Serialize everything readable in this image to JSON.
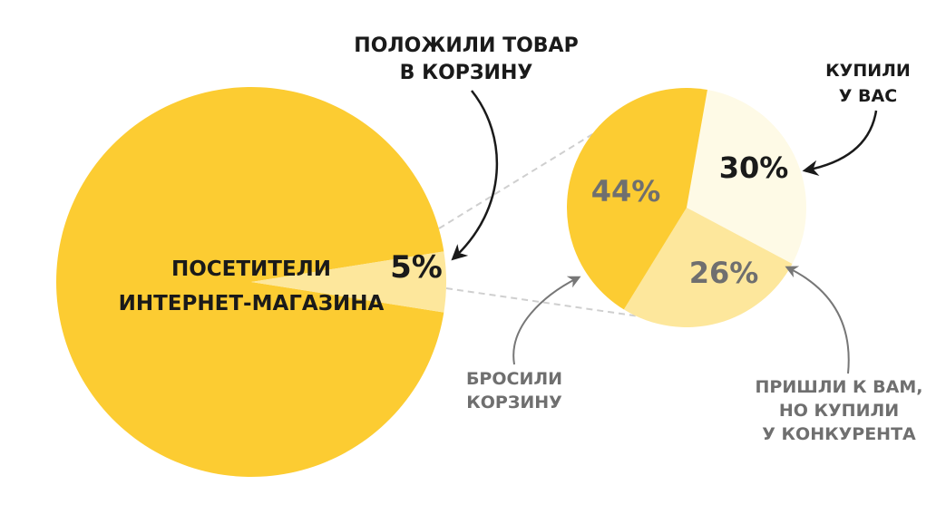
{
  "chart_data": [
    {
      "type": "pie",
      "name": "visitors",
      "categories": [
        "ПОСЕТИТЕЛИ ИНТЕРНЕТ-МАГАЗИНА",
        "ПОЛОЖИЛИ ТОВАР В КОРЗИНУ"
      ],
      "values": [
        95,
        5
      ],
      "value_labels": [
        "",
        "5%"
      ],
      "colors": [
        "#fccc32",
        "#fde79c"
      ],
      "center_label": [
        "ПОСЕТИТЕЛИ",
        "ИНТЕРНЕТ-МАГАЗИНА"
      ],
      "title": ""
    },
    {
      "type": "pie",
      "name": "cart",
      "categories": [
        "КУПИЛИ У ВАС",
        "ПРИШЛИ К ВАМ, НО КУПИЛИ У КОНКУРЕНТА",
        "БРОСИЛИ КОРЗИНУ"
      ],
      "values": [
        30,
        26,
        44
      ],
      "value_labels": [
        "30%",
        "26%",
        "44%"
      ],
      "colors": [
        "#fefae6",
        "#fde79c",
        "#fccc32"
      ],
      "title": ""
    }
  ],
  "annotations": {
    "cart_callout": [
      "ПОЛОЖИЛИ ТОВАР",
      "В КОРЗИНУ"
    ],
    "bought_callout": [
      "КУПИЛИ",
      "У ВАС"
    ],
    "abandoned_callout": [
      "БРОСИЛИ",
      "КОРЗИНУ"
    ],
    "competitor_callout": [
      "ПРИШЛИ К ВАМ,",
      "НО КУПИЛИ",
      "У КОНКУРЕНТА"
    ]
  },
  "colors": {
    "text_dark": "#1a1a1a",
    "text_gray": "#6f6f6f",
    "connector": "#cfcfcf",
    "arrow_dark": "#1a1a1a",
    "arrow_gray": "#777777"
  }
}
